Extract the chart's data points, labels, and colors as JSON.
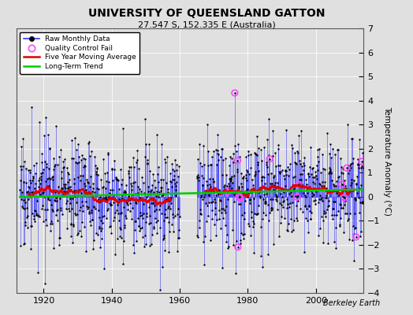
{
  "title": "UNIVERSITY OF QUEENSLAND GATTON",
  "subtitle": "27.547 S, 152.335 E (Australia)",
  "ylabel": "Temperature Anomaly (°C)",
  "credit": "Berkeley Earth",
  "year_start": 1913,
  "year_end": 2013,
  "gap_start": 1960,
  "gap_end": 1965,
  "ylim": [
    -4,
    7
  ],
  "yticks": [
    -4,
    -3,
    -2,
    -1,
    0,
    1,
    2,
    3,
    4,
    5,
    6,
    7
  ],
  "xticks": [
    1920,
    1940,
    1960,
    1980,
    2000
  ],
  "bg_color": "#e0e0e0",
  "line_color": "#3333ff",
  "trend_color": "#00cc00",
  "moving_avg_color": "#dd0000",
  "qc_color": "#ff44ff",
  "seed": 17
}
